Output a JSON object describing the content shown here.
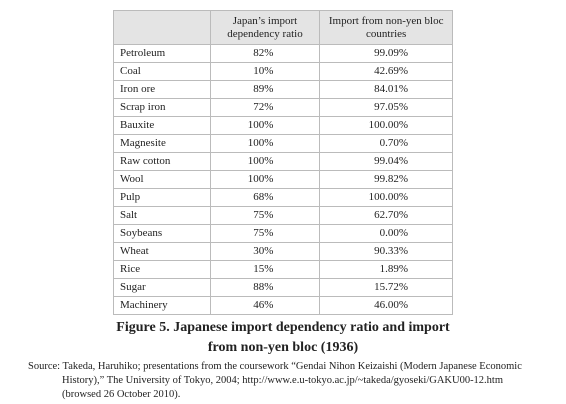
{
  "table": {
    "header": [
      "",
      "Japan’s import dependency ratio",
      "Import from non-yen bloc countries"
    ],
    "rows": [
      [
        "Petroleum",
        "82%",
        "99.09%"
      ],
      [
        "Coal",
        "10%",
        "42.69%"
      ],
      [
        "Iron ore",
        "89%",
        "84.01%"
      ],
      [
        "Scrap iron",
        "72%",
        "97.05%"
      ],
      [
        "Bauxite",
        "100%",
        "100.00%"
      ],
      [
        "Magnesite",
        "100%",
        "0.70%"
      ],
      [
        "Raw cotton",
        "100%",
        "99.04%"
      ],
      [
        "Wool",
        "100%",
        "99.82%"
      ],
      [
        "Pulp",
        "68%",
        "100.00%"
      ],
      [
        "Salt",
        "75%",
        "62.70%"
      ],
      [
        "Soybeans",
        "75%",
        "0.00%"
      ],
      [
        "Wheat",
        "30%",
        "90.33%"
      ],
      [
        "Rice",
        "15%",
        "1.89%"
      ],
      [
        "Sugar",
        "88%",
        "15.72%"
      ],
      [
        "Machinery",
        "46%",
        "46.00%"
      ]
    ]
  },
  "caption": "Figure 5. Japanese import dependency ratio and import from non-yen bloc (1936)",
  "source": {
    "label": "Source:",
    "text": "Takeda, Haruhiko; presentations from the coursework “Gendai Nihon Keizaishi (Modern Japanese Economic History),” The University of Tokyo, 2004; http://www.e.u-tokyo.ac.jp/~takeda/gyoseki/GAKU00-12.htm (browsed 26 October 2010)."
  }
}
